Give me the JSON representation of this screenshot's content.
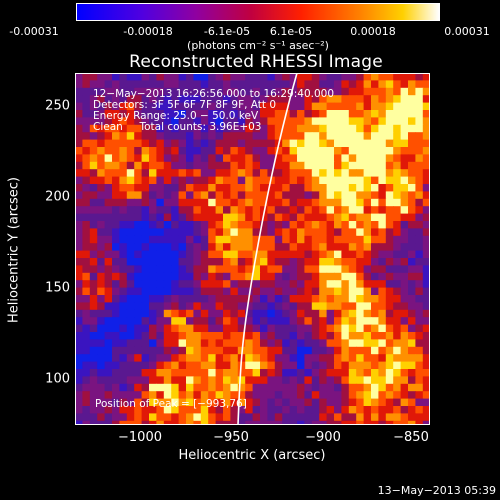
{
  "colorbar": {
    "ticks": [
      "-0.00031",
      "-0.00018",
      "-6.1e-05",
      "6.1e-05",
      "0.00018",
      "0.00031"
    ],
    "units": "(photons cm⁻² s⁻¹ asec⁻²)",
    "colors": [
      "#0000ff",
      "#7000d0",
      "#b00060",
      "#ff2000",
      "#ff9000",
      "#ffffff"
    ]
  },
  "image": {
    "title": "Reconstructed RHESSI Image",
    "xlabel": "Heliocentric X (arcsec)",
    "ylabel": "Heliocentric Y (arcsec)",
    "xticks": [
      "−1000",
      "−950",
      "−900",
      "−850"
    ],
    "yticks": [
      "250",
      "200",
      "150",
      "100"
    ],
    "xrange": [
      -1035,
      -840
    ],
    "yrange": [
      75,
      270
    ],
    "info_lines": [
      "12−May−2013 16:26:56.000 to 16:29:40.000",
      "Detectors: 3F 5F 6F 7F 8F 9F, Att 0",
      "Energy Range: 25.0 − 50.0 keV",
      "Clean     Total counts: 3.96E+03"
    ],
    "peak_text": "Position of Peak = [−993,76]"
  },
  "timestamp": "13−May−2013 05:39"
}
